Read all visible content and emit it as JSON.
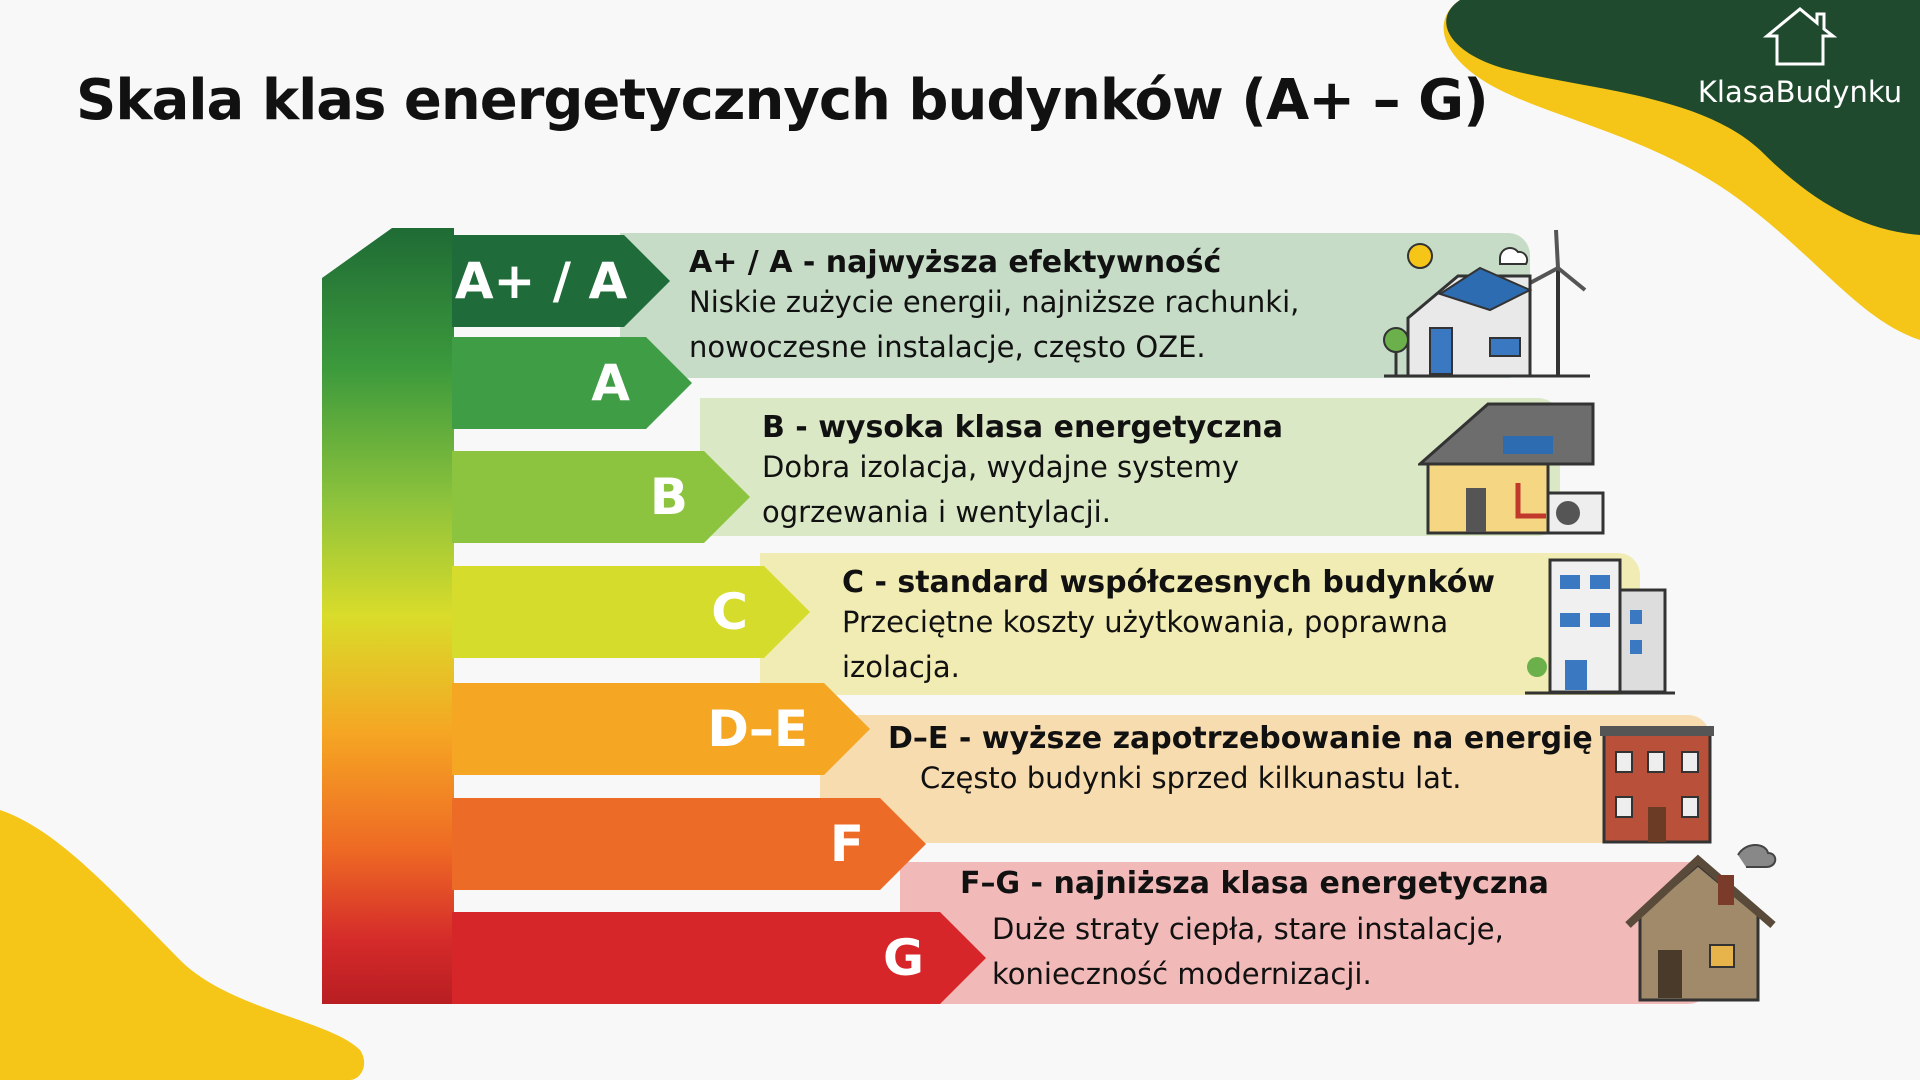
{
  "title": "Skala klas energetycznych budynków (A+ – G)",
  "logo": {
    "text": "KlasaBudynku",
    "icon": "house-outline-icon"
  },
  "colors": {
    "dark_green": "#1f4a2e",
    "yellow": "#f5c518"
  },
  "tabs": [
    {
      "label": "A+ / A",
      "color": "#1f6b3a"
    },
    {
      "label": "A",
      "color": "#3f9e45"
    },
    {
      "label": "B",
      "color": "#8cc43f"
    },
    {
      "label": "C",
      "color": "#d6dc2c"
    },
    {
      "label": "D–E",
      "color": "#f5a623"
    },
    {
      "label": "F",
      "color": "#ec6b26"
    },
    {
      "label": "G",
      "color": "#d6262a"
    }
  ],
  "bands": [
    {
      "title": "A+ / A - najwyższa efektywność",
      "lines": [
        "Niskie zużycie energii, najniższe rachunki,",
        "nowoczesne instalacje, często OZE."
      ],
      "icon": "eco-house-solar-wind-icon"
    },
    {
      "title": "B - wysoka klasa energetyczna",
      "lines": [
        "Dobra izolacja, wydajne systemy",
        "ogrzewania i wentylacji."
      ],
      "icon": "house-heat-pump-icon"
    },
    {
      "title": "C - standard współczesnych budynków",
      "lines": [
        "Przeciętne koszty użytkowania, poprawna",
        "izolacja."
      ],
      "icon": "apartment-building-icon"
    },
    {
      "title": "D–E - wyższe zapotrzebowanie na energię",
      "lines": [
        "Często budynki sprzed kilkunastu lat."
      ],
      "icon": "brick-building-icon"
    },
    {
      "title": "F–G - najniższa klasa energetyczna",
      "lines": [
        "Duże straty ciepła, stare instalacje,",
        "konieczność modernizacji."
      ],
      "icon": "old-house-smoke-icon"
    }
  ]
}
